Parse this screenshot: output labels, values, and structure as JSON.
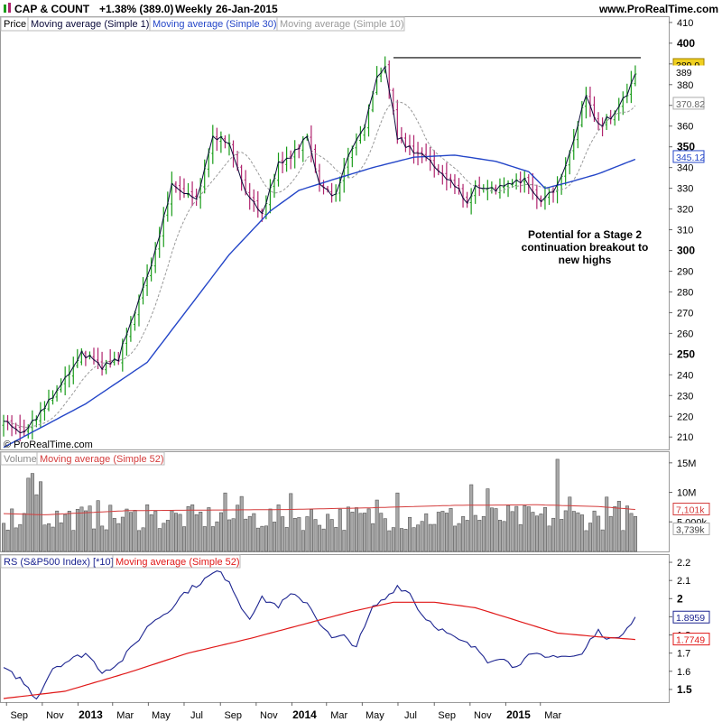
{
  "header": {
    "symbol": "CAP & COUNT",
    "change": "+1.38% (389.0)",
    "period": "Weekly",
    "date": "26-Jan-2015",
    "site": "www.ProRealTime.com",
    "copyright": "© ProRealTime.com"
  },
  "annotation": [
    "Potential for a Stage 2",
    "continuation breakout to",
    "new highs"
  ],
  "colors": {
    "up": "#1a9c1a",
    "down": "#b0246e",
    "ma1": "#0a0a3a",
    "ma30": "#2446c8",
    "ma10": "#9a9a9a",
    "vol_bar": "#a8a8a8",
    "vol_ma": "#d43c3c",
    "rs": "#1c2490",
    "rs_ma": "#e01818",
    "price_tag": "#f0d020"
  },
  "chart_data": [
    {
      "type": "candlestick",
      "title": "Price",
      "legend": [
        "Price",
        "Moving average (Simple 1)",
        "Moving average (Simple 30)",
        "Moving average (Simple 10)"
      ],
      "yticks": [
        210,
        220,
        230,
        240,
        250,
        260,
        270,
        280,
        290,
        300,
        310,
        320,
        330,
        340,
        350,
        360,
        370,
        380,
        390,
        400,
        410
      ],
      "major_ticks": [
        250,
        300,
        350,
        400
      ],
      "ylim": [
        204,
        413
      ],
      "resistance": 393,
      "value_tags": [
        {
          "label": "389.0",
          "value": 389.5,
          "style": "yellow"
        },
        {
          "label": "389",
          "value": 386,
          "style": "plain"
        },
        {
          "label": "370.82",
          "value": 370.8,
          "style": "grey"
        },
        {
          "label": "345.12",
          "value": 345.1,
          "style": "blue"
        }
      ],
      "x_axis": [
        "Sep",
        "Nov",
        "2013",
        "Mar",
        "May",
        "Jul",
        "Sep",
        "Nov",
        "2014",
        "Mar",
        "May",
        "Jul",
        "Sep",
        "Nov",
        "2015",
        "Mar"
      ],
      "bold_x": [
        "2013",
        "2014",
        "2015"
      ],
      "weeks_start": "2012-08-27",
      "close_anchors": [
        [
          0,
          217
        ],
        [
          5,
          212
        ],
        [
          9,
          222
        ],
        [
          15,
          238
        ],
        [
          19,
          251
        ],
        [
          24,
          244
        ],
        [
          28,
          248
        ],
        [
          32,
          271
        ],
        [
          36,
          293
        ],
        [
          41,
          331
        ],
        [
          47,
          325
        ],
        [
          51,
          355
        ],
        [
          55,
          352
        ],
        [
          59,
          328
        ],
        [
          63,
          318
        ],
        [
          67,
          342
        ],
        [
          70,
          345
        ],
        [
          74,
          356
        ],
        [
          77,
          332
        ],
        [
          81,
          326
        ],
        [
          84,
          345
        ],
        [
          88,
          361
        ],
        [
          91,
          384
        ],
        [
          93,
          388
        ],
        [
          96,
          355
        ],
        [
          99,
          349
        ],
        [
          103,
          345
        ],
        [
          107,
          337
        ],
        [
          111,
          330
        ],
        [
          113,
          323
        ],
        [
          115,
          330
        ],
        [
          119,
          329
        ],
        [
          123,
          331
        ],
        [
          127,
          334
        ],
        [
          131,
          323
        ],
        [
          135,
          331
        ],
        [
          139,
          352
        ],
        [
          142,
          376
        ],
        [
          145,
          360
        ],
        [
          149,
          366
        ],
        [
          152,
          376
        ],
        [
          154,
          385
        ]
      ],
      "ma30_anchors": [
        [
          0,
          205
        ],
        [
          20,
          226
        ],
        [
          35,
          246
        ],
        [
          45,
          272
        ],
        [
          55,
          298
        ],
        [
          65,
          319
        ],
        [
          72,
          329
        ],
        [
          80,
          334
        ],
        [
          90,
          340
        ],
        [
          100,
          345
        ],
        [
          110,
          346
        ],
        [
          120,
          343
        ],
        [
          128,
          338
        ],
        [
          132,
          330
        ],
        [
          138,
          333
        ],
        [
          145,
          337
        ],
        [
          154,
          344
        ]
      ]
    },
    {
      "type": "bar",
      "title": "Volume",
      "legend": [
        "Volume",
        "Moving average (Simple 52)"
      ],
      "yticks": [
        "15M",
        "10M",
        "5,000k"
      ],
      "ytick_values": [
        15000000,
        10000000,
        5000000
      ],
      "ylim": [
        0,
        16500000
      ],
      "value_tags": [
        {
          "label": "7,101k",
          "value": 7101000,
          "style": "red"
        },
        {
          "label": "3,739k",
          "value": 3739000,
          "style": "plain"
        }
      ],
      "ma_anchors": [
        [
          0,
          6.4
        ],
        [
          10,
          6.2
        ],
        [
          30,
          6.9
        ],
        [
          50,
          7.0
        ],
        [
          70,
          7.1
        ],
        [
          90,
          7.4
        ],
        [
          110,
          7.8
        ],
        [
          130,
          7.9
        ],
        [
          145,
          7.6
        ],
        [
          154,
          7.1
        ]
      ],
      "spikes": [
        [
          6,
          12.4
        ],
        [
          7,
          13.2
        ],
        [
          8,
          9.6
        ],
        [
          9,
          11.8
        ],
        [
          23,
          8.6
        ],
        [
          35,
          7.9
        ],
        [
          54,
          9.9
        ],
        [
          58,
          9.3
        ],
        [
          70,
          9.8
        ],
        [
          91,
          8.7
        ],
        [
          96,
          9.9
        ],
        [
          114,
          11.3
        ],
        [
          118,
          10.6
        ],
        [
          135,
          15.6
        ],
        [
          138,
          9.2
        ],
        [
          147,
          9.2
        ],
        [
          150,
          8.5
        ]
      ]
    },
    {
      "type": "line",
      "title": "RS (S&P500 Index) [*10]",
      "legend": [
        "RS (S&P500 Index) [*10]",
        "Moving average (Simple 52)"
      ],
      "yticks": [
        1.5,
        1.6,
        1.7,
        1.8,
        1.9,
        2,
        2.1,
        2.2
      ],
      "ytick_labels": [
        "1.5",
        "1.6",
        "1.7",
        "1.8",
        "1.9",
        "2",
        "2.1",
        "2.2"
      ],
      "major_ticks": [
        1.5,
        2
      ],
      "ylim": [
        1.43,
        2.24
      ],
      "value_tags": [
        {
          "label": "1.8959",
          "value": 1.8959,
          "style": "blue"
        },
        {
          "label": "1.7749",
          "value": 1.7749,
          "style": "red"
        }
      ],
      "rs_anchors": [
        [
          0,
          1.61
        ],
        [
          4,
          1.56
        ],
        [
          8,
          1.45
        ],
        [
          12,
          1.62
        ],
        [
          16,
          1.66
        ],
        [
          20,
          1.7
        ],
        [
          24,
          1.6
        ],
        [
          28,
          1.64
        ],
        [
          32,
          1.75
        ],
        [
          36,
          1.87
        ],
        [
          40,
          1.93
        ],
        [
          44,
          2.03
        ],
        [
          48,
          2.09
        ],
        [
          52,
          2.15
        ],
        [
          55,
          2.1
        ],
        [
          58,
          1.95
        ],
        [
          60,
          1.9
        ],
        [
          63,
          2.0
        ],
        [
          67,
          1.96
        ],
        [
          70,
          2.02
        ],
        [
          74,
          1.98
        ],
        [
          77,
          1.87
        ],
        [
          80,
          1.78
        ],
        [
          83,
          1.79
        ],
        [
          86,
          1.74
        ],
        [
          88,
          1.84
        ],
        [
          90,
          1.95
        ],
        [
          93,
          2.0
        ],
        [
          96,
          2.07
        ],
        [
          99,
          2.03
        ],
        [
          102,
          1.91
        ],
        [
          106,
          1.84
        ],
        [
          110,
          1.78
        ],
        [
          113,
          1.75
        ],
        [
          116,
          1.71
        ],
        [
          118,
          1.66
        ],
        [
          121,
          1.68
        ],
        [
          124,
          1.63
        ],
        [
          126,
          1.65
        ],
        [
          128,
          1.68
        ],
        [
          130,
          1.69
        ],
        [
          132,
          1.67
        ],
        [
          135,
          1.69
        ],
        [
          138,
          1.68
        ],
        [
          141,
          1.69
        ],
        [
          143,
          1.77
        ],
        [
          145,
          1.82
        ],
        [
          147,
          1.79
        ],
        [
          149,
          1.77
        ],
        [
          151,
          1.82
        ],
        [
          154,
          1.9
        ]
      ],
      "ma_anchors": [
        [
          0,
          1.45
        ],
        [
          15,
          1.49
        ],
        [
          30,
          1.59
        ],
        [
          45,
          1.7
        ],
        [
          60,
          1.78
        ],
        [
          75,
          1.87
        ],
        [
          85,
          1.93
        ],
        [
          95,
          1.98
        ],
        [
          105,
          1.98
        ],
        [
          115,
          1.95
        ],
        [
          125,
          1.88
        ],
        [
          135,
          1.81
        ],
        [
          145,
          1.79
        ],
        [
          154,
          1.775
        ]
      ]
    }
  ]
}
